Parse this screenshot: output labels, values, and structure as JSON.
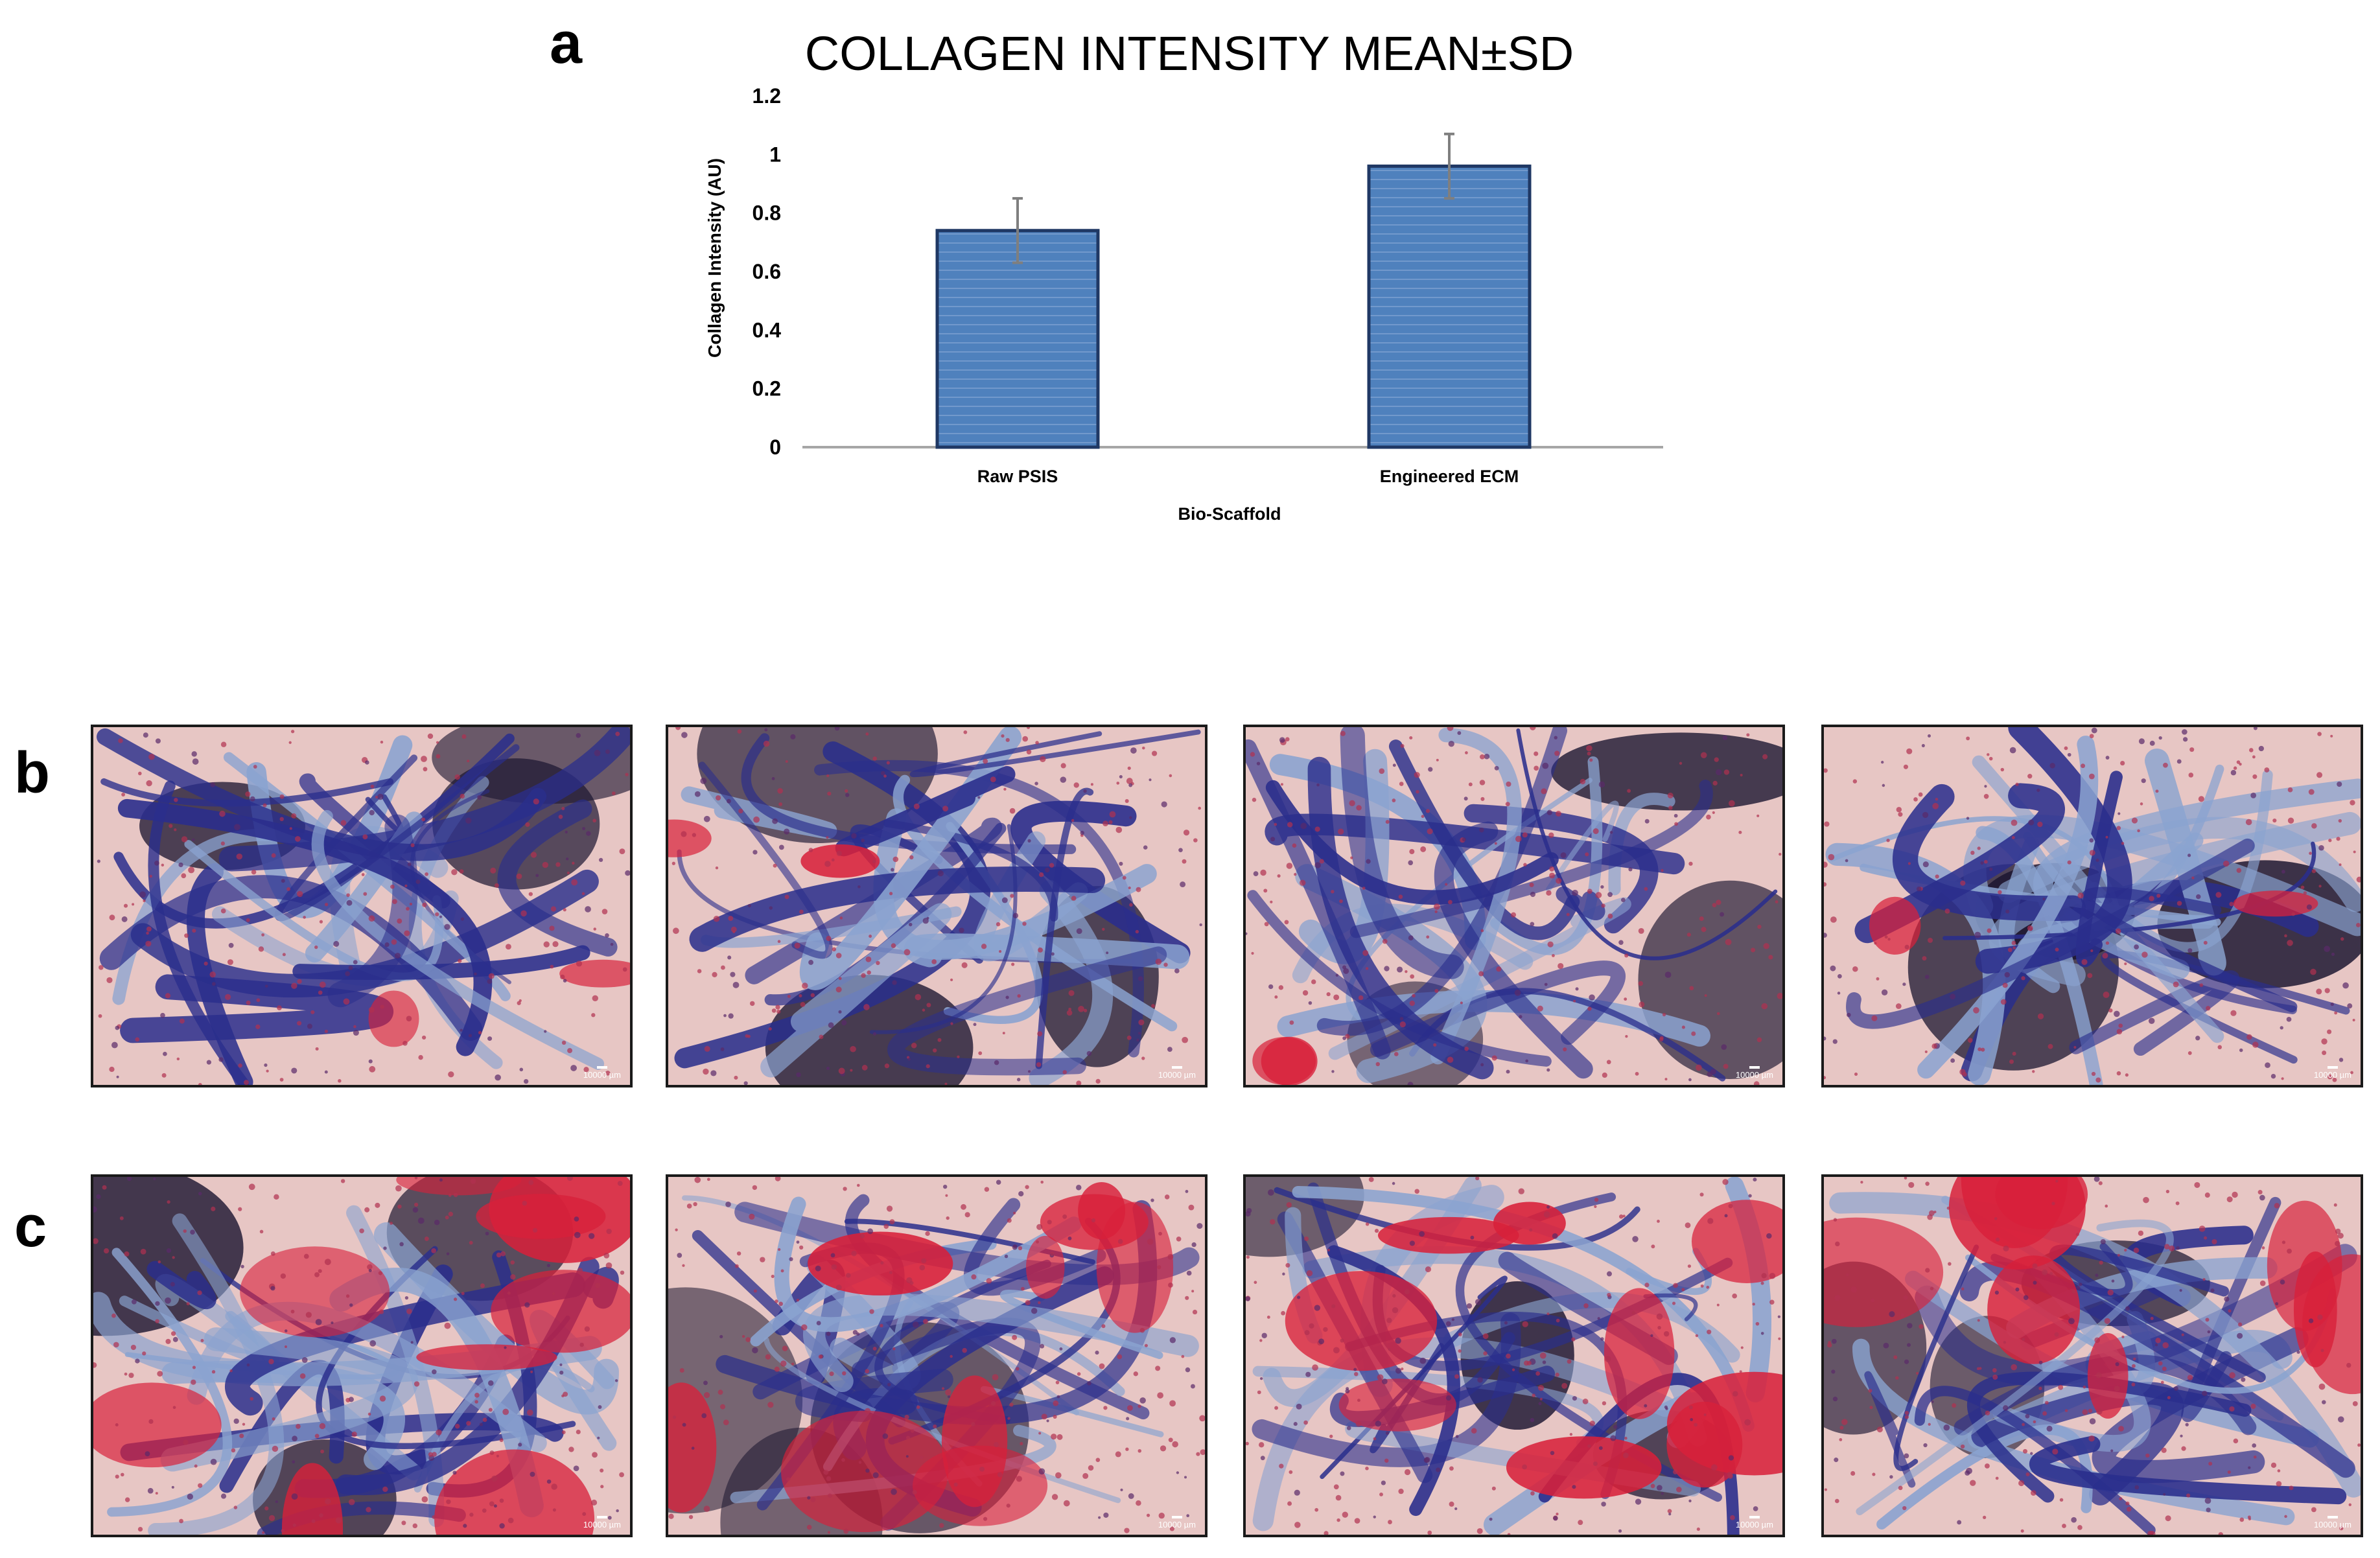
{
  "panels": {
    "a": "a",
    "b": "b",
    "c": "c"
  },
  "chart_data": {
    "type": "bar",
    "title": "COLLAGEN INTENSITY MEAN±SD",
    "xlabel": "Bio-Scaffold",
    "ylabel": "Collagen Intensity (AU)",
    "categories": [
      "Raw PSIS",
      "Engineered ECM"
    ],
    "values": [
      0.74,
      0.96
    ],
    "error": [
      0.11,
      0.11
    ],
    "ylim": [
      0,
      1.2
    ],
    "yticks": [
      "0",
      "0.2",
      "0.4",
      "0.6",
      "0.8",
      "1",
      "1.2"
    ],
    "bar_color": "#4f81bd",
    "grid": false,
    "legend": "none"
  },
  "micrographs": {
    "row_b": [
      {
        "scale": "10000 µm",
        "stain": "blue-dominant"
      },
      {
        "scale": "10000 µm",
        "stain": "blue-dominant"
      },
      {
        "scale": "10000 µm",
        "stain": "blue-dominant"
      },
      {
        "scale": "10000 µm",
        "stain": "blue-dominant"
      }
    ],
    "row_c": [
      {
        "scale": "10000 µm",
        "stain": "red-blue-mixed"
      },
      {
        "scale": "10000 µm",
        "stain": "red-blue-mixed"
      },
      {
        "scale": "10000 µm",
        "stain": "red-blue-mixed"
      },
      {
        "scale": "10000 µm",
        "stain": "red-blue-mixed"
      }
    ]
  },
  "colors": {
    "background_pink": "#e7c6c4",
    "collagen_blue": "#2a2e8c",
    "light_blue": "#8aa3d0",
    "red_stain": "#d8203a",
    "dark": "#1b1530"
  }
}
